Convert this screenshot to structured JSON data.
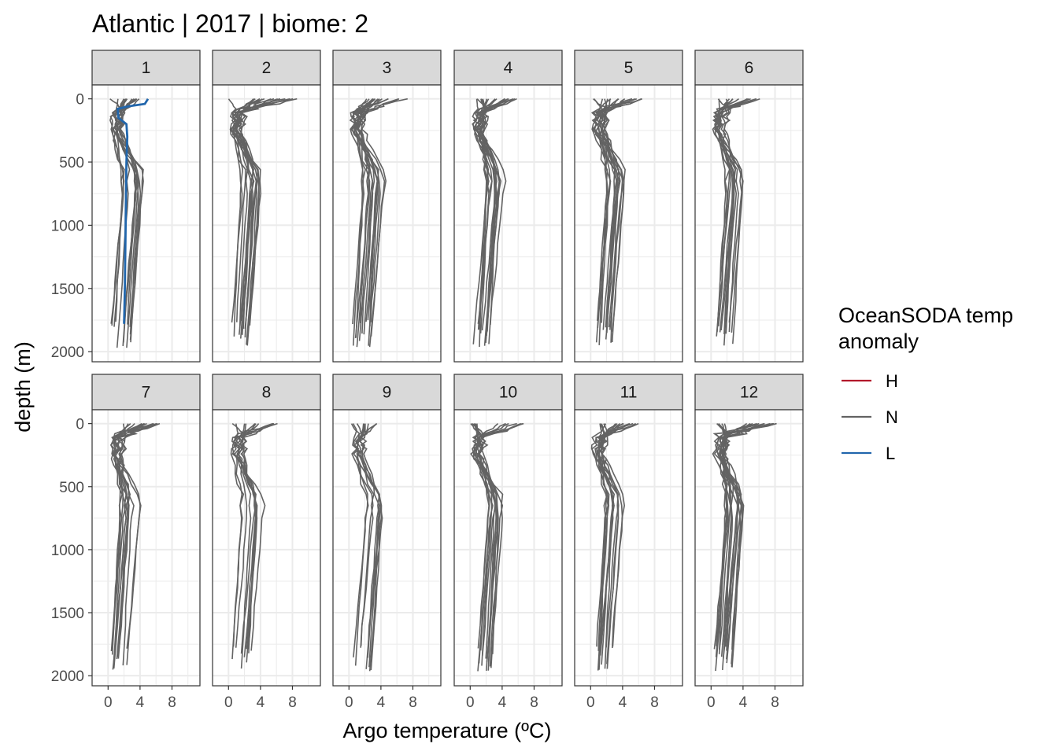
{
  "chart_data": {
    "type": "line",
    "title": "Atlantic | 2017 | biome: 2",
    "xlabel": "Argo temperature (ºC)",
    "ylabel": "depth (m)",
    "xlim": [
      -2,
      11.5
    ],
    "ylim": [
      2080,
      -110
    ],
    "x_ticks": [
      0,
      4,
      8
    ],
    "y_ticks": [
      0,
      500,
      1000,
      1500,
      2000
    ],
    "y_reversed": true,
    "grid": true,
    "facet_labels": [
      "1",
      "2",
      "3",
      "4",
      "5",
      "6",
      "7",
      "8",
      "9",
      "10",
      "11",
      "12"
    ],
    "legend": {
      "title_lines": [
        "OceanSODA temp",
        "anomaly"
      ],
      "position": "right",
      "items": [
        {
          "label": "H",
          "color": "#B2182B"
        },
        {
          "label": "N",
          "color": "#636363"
        },
        {
          "label": "L",
          "color": "#2166AC"
        }
      ]
    },
    "series": [
      {
        "panel": 1,
        "group": "L",
        "name": "",
        "points": [
          [
            5.0,
            0
          ],
          [
            4.6,
            40
          ],
          [
            2.5,
            60
          ],
          [
            1.2,
            80
          ],
          [
            1.3,
            150
          ],
          [
            2.3,
            200
          ],
          [
            2.4,
            300
          ],
          [
            2.3,
            500
          ],
          [
            2.2,
            1000
          ],
          [
            2.1,
            1500
          ],
          [
            2.0,
            1780
          ]
        ]
      }
    ]
  }
}
